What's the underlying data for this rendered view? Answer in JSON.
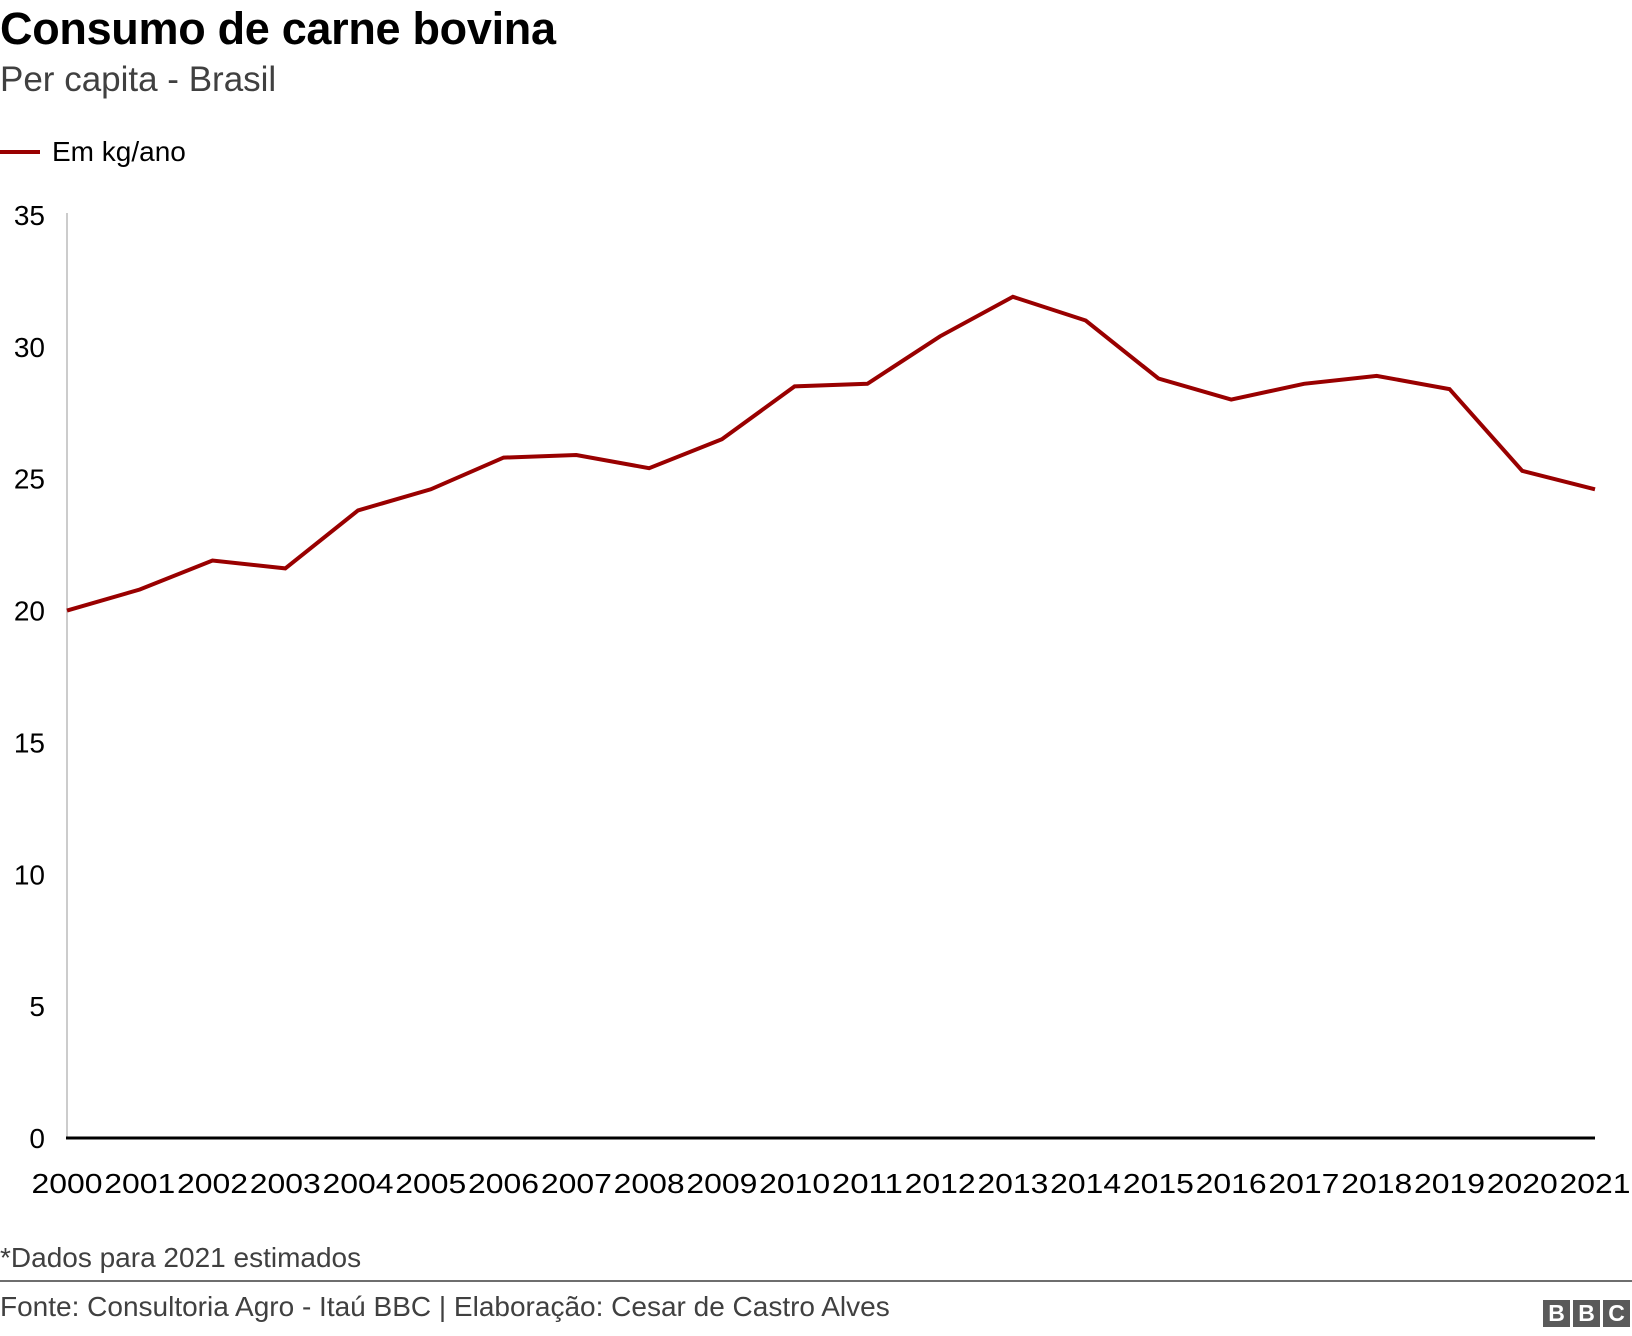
{
  "header": {
    "title": "Consumo de carne bovina",
    "subtitle": "Per capita - Brasil"
  },
  "legend": {
    "items": [
      {
        "label": "Em kg/ano",
        "color": "#990000"
      }
    ]
  },
  "footer": {
    "footnote": "*Dados para 2021 estimados",
    "source": "Fonte: Consultoria Agro - Itaú BBC | Elaboração: Cesar de Castro Alves",
    "logo_letters": [
      "B",
      "B",
      "C"
    ]
  },
  "chart_data": {
    "type": "line",
    "title": "Consumo de carne bovina",
    "subtitle": "Per capita - Brasil",
    "xlabel": "",
    "ylabel": "",
    "categories": [
      "2000",
      "2001",
      "2002",
      "2003",
      "2004",
      "2005",
      "2006",
      "2007",
      "2008",
      "2009",
      "2010",
      "2011",
      "2012",
      "2013",
      "2014",
      "2015",
      "2016",
      "2017",
      "2018",
      "2019",
      "2020",
      "2021"
    ],
    "series": [
      {
        "name": "Em kg/ano",
        "color": "#990000",
        "values": [
          20.0,
          20.8,
          21.9,
          21.6,
          23.8,
          24.6,
          25.8,
          25.9,
          25.4,
          26.5,
          28.5,
          28.6,
          30.4,
          31.9,
          31.0,
          28.8,
          28.0,
          28.6,
          28.9,
          28.4,
          25.3,
          24.6
        ]
      }
    ],
    "ylim": [
      0,
      35
    ],
    "yticks": [
      0,
      5,
      10,
      15,
      20,
      25,
      30,
      35
    ],
    "grid": false,
    "legend_position": "top-left",
    "annotations": [
      "*Dados para 2021 estimados"
    ]
  }
}
